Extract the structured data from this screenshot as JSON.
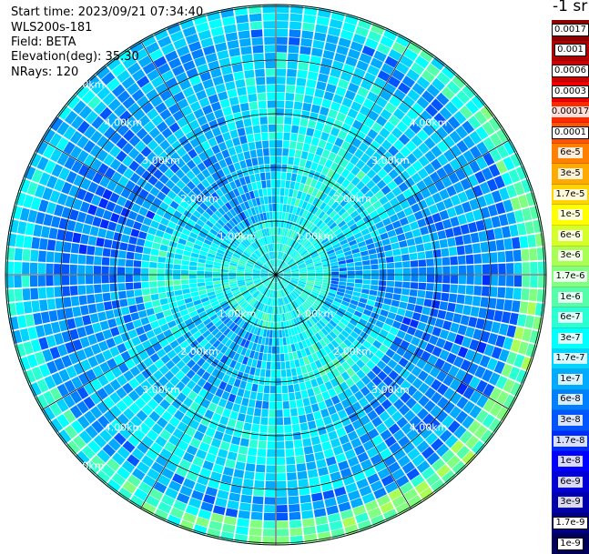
{
  "info": {
    "start_time": "Start time: 2023/09/21 07:34:40",
    "instrument": "WLS200s-181",
    "field": "Field: BETA",
    "elevation": "Elevation(deg): 35.30",
    "nrays": "NRays: 120"
  },
  "unit_label": "-1 sr",
  "ppi": {
    "n_rays": 120,
    "ring_labels": [
      "1.00km",
      "2.00km",
      "3.00km",
      "4.00km",
      "5.00km"
    ]
  },
  "colorbar": {
    "labels": [
      "0.0017",
      "0.001",
      "0.0006",
      "0.0003",
      "0.00017",
      "0.0001",
      "6e-5",
      "3e-5",
      "1.7e-5",
      "1e-5",
      "6e-6",
      "3e-6",
      "1.7e-6",
      "1e-6",
      "6e-7",
      "3e-7",
      "1.7e-7",
      "1e-7",
      "6e-8",
      "3e-8",
      "1.7e-8",
      "1e-8",
      "6e-9",
      "3e-9",
      "1.7e-9",
      "1e-9"
    ],
    "colors": [
      "#8b0000",
      "#b00000",
      "#d40000",
      "#f00000",
      "#ff2a00",
      "#ff5500",
      "#ff8000",
      "#ffaa00",
      "#ffd400",
      "#ffff00",
      "#d4ff2b",
      "#aaff55",
      "#80ff80",
      "#55ffaa",
      "#2bffd4",
      "#00ffff",
      "#00d4ff",
      "#00aaff",
      "#0080ff",
      "#0055ff",
      "#002bff",
      "#0000ff",
      "#0000d4",
      "#0000aa",
      "#000080",
      "#00005a"
    ],
    "boxed": [
      0,
      1,
      2,
      3,
      5,
      24,
      25
    ]
  }
}
